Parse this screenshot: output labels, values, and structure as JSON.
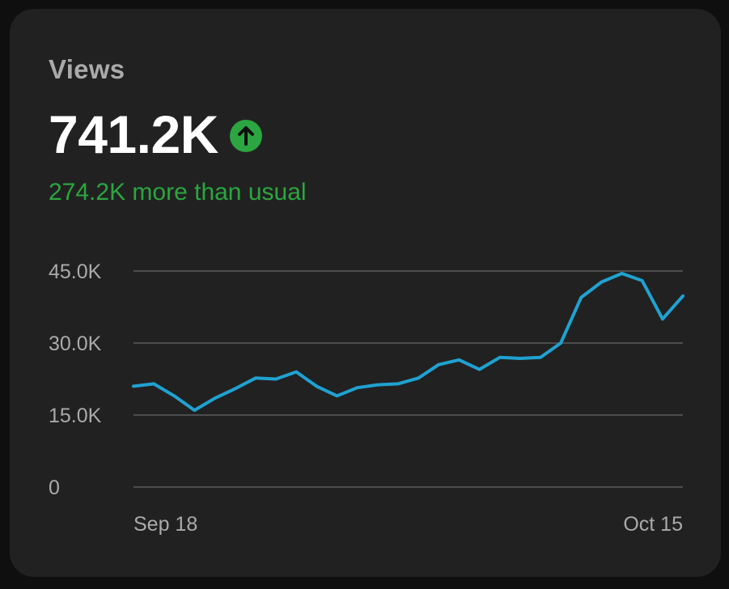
{
  "card": {
    "title": "Views",
    "value": "741.2K",
    "delta_text": "274.2K more than usual",
    "trend_icon": "arrow-up-circle-icon",
    "colors": {
      "accent_line": "#1fa2d1",
      "positive": "#2ba640"
    }
  },
  "chart_data": {
    "type": "line",
    "y_tick_labels": [
      "0",
      "15.0K",
      "30.0K",
      "45.0K"
    ],
    "y_ticks": [
      0,
      15000,
      30000,
      45000
    ],
    "ylim": [
      0,
      45000
    ],
    "x_tick_labels": [
      "Sep 18",
      "Oct 15"
    ],
    "grid": true,
    "x": [
      "Sep 18",
      "Sep 19",
      "Sep 20",
      "Sep 21",
      "Sep 22",
      "Sep 23",
      "Sep 24",
      "Sep 25",
      "Sep 26",
      "Sep 27",
      "Sep 28",
      "Sep 29",
      "Sep 30",
      "Oct 1",
      "Oct 2",
      "Oct 3",
      "Oct 4",
      "Oct 5",
      "Oct 6",
      "Oct 7",
      "Oct 8",
      "Oct 9",
      "Oct 10",
      "Oct 11",
      "Oct 12",
      "Oct 13",
      "Oct 14",
      "Oct 15"
    ],
    "series": [
      {
        "values": [
          21000,
          21500,
          19000,
          16000,
          18500,
          20500,
          22700,
          22500,
          24000,
          21000,
          19000,
          20700,
          21300,
          21500,
          22700,
          25500,
          26500,
          24500,
          27000,
          26800,
          27000,
          30000,
          39500,
          42700,
          44500,
          43000,
          35000,
          39800
        ]
      }
    ]
  }
}
